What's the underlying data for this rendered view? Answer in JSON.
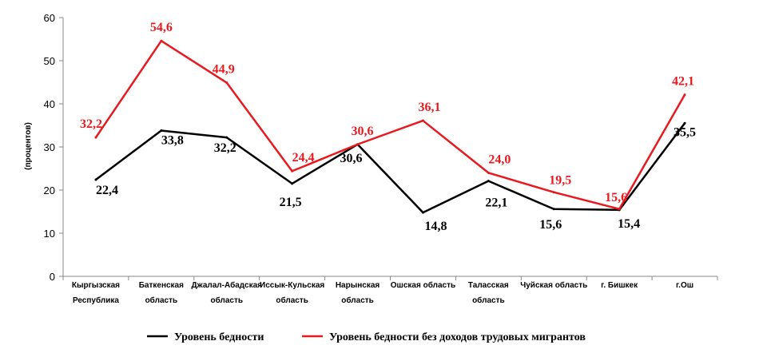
{
  "chart_data": {
    "type": "line",
    "title": "",
    "xlabel": "",
    "ylabel": "(процентов)",
    "ylim": [
      0,
      60
    ],
    "yticks": [
      0,
      10,
      20,
      30,
      40,
      50,
      60
    ],
    "grid": false,
    "legend_position": "bottom",
    "categories": [
      [
        "Кыргызская",
        "Республика"
      ],
      [
        "Баткенская",
        "область"
      ],
      [
        "Джалал-Абадская",
        "область"
      ],
      [
        "Иссык-Кульская",
        "область"
      ],
      [
        "Нарынская",
        "область"
      ],
      [
        "Ошская область"
      ],
      [
        "Таласская",
        "область"
      ],
      [
        "Чуйская область"
      ],
      [
        "г. Бишкек"
      ],
      [
        "г.Ош"
      ]
    ],
    "series": [
      {
        "name": "Уровень бедности",
        "color": "#000000",
        "values": [
          22.4,
          33.8,
          32.2,
          21.5,
          30.6,
          14.8,
          22.1,
          15.6,
          15.4,
          35.5
        ],
        "labels": [
          "22,4",
          "33,8",
          "32,2",
          "21,5",
          "30,6",
          "14,8",
          "22,1",
          "15,6",
          "15,4",
          "35,5"
        ]
      },
      {
        "name": "Уровень бедности без доходов трудовых мигрантов",
        "color": "#e8191f",
        "values": [
          32.2,
          54.6,
          44.9,
          24.4,
          30.6,
          36.1,
          24.0,
          19.5,
          15.6,
          42.1
        ],
        "labels": [
          "32,2",
          "54,6",
          "44,9",
          "24,4",
          "30,6",
          "36,1",
          "24,0",
          "19,5",
          "15,6",
          "42,1"
        ]
      }
    ]
  }
}
